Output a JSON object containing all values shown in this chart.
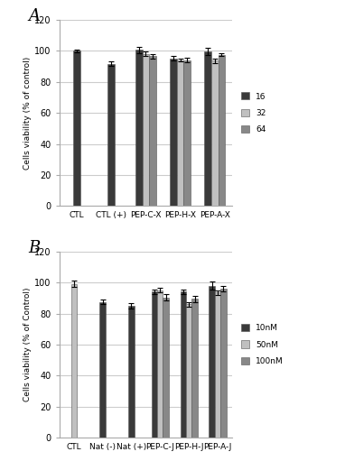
{
  "panel_A": {
    "categories": [
      "CTL",
      "CTL (+)",
      "PEP-C-X",
      "PEP-H-X",
      "PEP-A-X"
    ],
    "series": {
      "16": [
        100.0,
        91.5,
        100.5,
        95.0,
        99.5
      ],
      "32": [
        null,
        null,
        98.0,
        94.0,
        93.5
      ],
      "64": [
        null,
        null,
        96.5,
        94.0,
        97.5
      ]
    },
    "errors": {
      "16": [
        0.8,
        1.5,
        2.0,
        1.5,
        2.5
      ],
      "32": [
        null,
        null,
        1.5,
        1.0,
        1.5
      ],
      "64": [
        null,
        null,
        1.5,
        1.5,
        1.0
      ]
    },
    "ylabel": "Cells viability (% of control)",
    "ylim": [
      0,
      120
    ],
    "yticks": [
      0,
      20,
      40,
      60,
      80,
      100,
      120
    ],
    "legend_labels": [
      "16",
      "32",
      "64"
    ],
    "colors": [
      "#3a3a3a",
      "#c0c0c0",
      "#888888"
    ],
    "panel_label": "A"
  },
  "panel_B": {
    "categories": [
      "CTL",
      "Nat (-)",
      "Nat (+)",
      "PEP-C-J",
      "PEP-H-J",
      "PEP-A-J"
    ],
    "series": {
      "10nM": [
        null,
        87.5,
        85.0,
        94.0,
        94.0,
        98.0
      ],
      "50nM": [
        99.0,
        null,
        null,
        95.0,
        86.0,
        93.5
      ],
      "100nM": [
        null,
        null,
        null,
        90.5,
        89.5,
        96.0
      ]
    },
    "errors": {
      "10nM": [
        null,
        1.5,
        2.0,
        1.5,
        1.5,
        2.5
      ],
      "50nM": [
        2.0,
        null,
        null,
        1.5,
        1.5,
        1.5
      ],
      "100nM": [
        null,
        null,
        null,
        2.0,
        2.0,
        1.5
      ]
    },
    "ylabel": "Cells viability (% of Control)",
    "ylim": [
      0,
      120
    ],
    "yticks": [
      0,
      20,
      40,
      60,
      80,
      100,
      120
    ],
    "legend_labels": [
      "10nM",
      "50nM",
      "100nM"
    ],
    "colors": [
      "#3a3a3a",
      "#c0c0c0",
      "#888888"
    ],
    "panel_label": "B"
  },
  "background_color": "#ffffff",
  "grid_color": "#cccccc",
  "fig_width": 3.92,
  "fig_height": 5.11,
  "dpi": 100
}
